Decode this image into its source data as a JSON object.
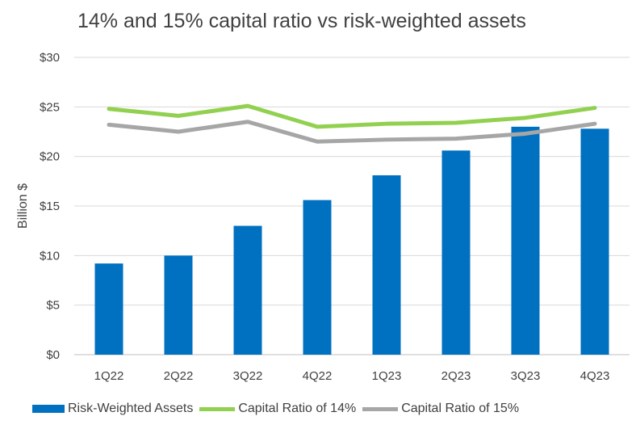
{
  "chart_data": {
    "type": "bar",
    "title": "14% and 15% capital ratio vs risk-weighted assets",
    "ylabel": "Billion $",
    "xlabel": "",
    "categories": [
      "1Q22",
      "2Q22",
      "3Q22",
      "4Q22",
      "1Q23",
      "2Q23",
      "3Q23",
      "4Q23"
    ],
    "ylim": [
      0,
      30
    ],
    "yticks": [
      0,
      5,
      10,
      15,
      20,
      25,
      30
    ],
    "ytick_labels": [
      "$0",
      "$5",
      "$10",
      "$15",
      "$20",
      "$25",
      "$30"
    ],
    "grid": true,
    "legend_position": "bottom",
    "series": [
      {
        "name": "Risk-Weighted Assets",
        "type": "bar",
        "color": "#0070C0",
        "values": [
          9.2,
          10.0,
          13.0,
          15.6,
          18.1,
          20.6,
          23.0,
          22.8
        ]
      },
      {
        "name": "Capital Ratio of 14%",
        "type": "line",
        "color": "#92D050",
        "values": [
          24.8,
          24.1,
          25.1,
          23.0,
          23.3,
          23.4,
          23.9,
          24.9
        ]
      },
      {
        "name": "Capital Ratio of 15%",
        "type": "line",
        "color": "#A6A6A6",
        "values": [
          23.2,
          22.5,
          23.5,
          21.5,
          21.7,
          21.8,
          22.3,
          23.3
        ]
      }
    ]
  }
}
